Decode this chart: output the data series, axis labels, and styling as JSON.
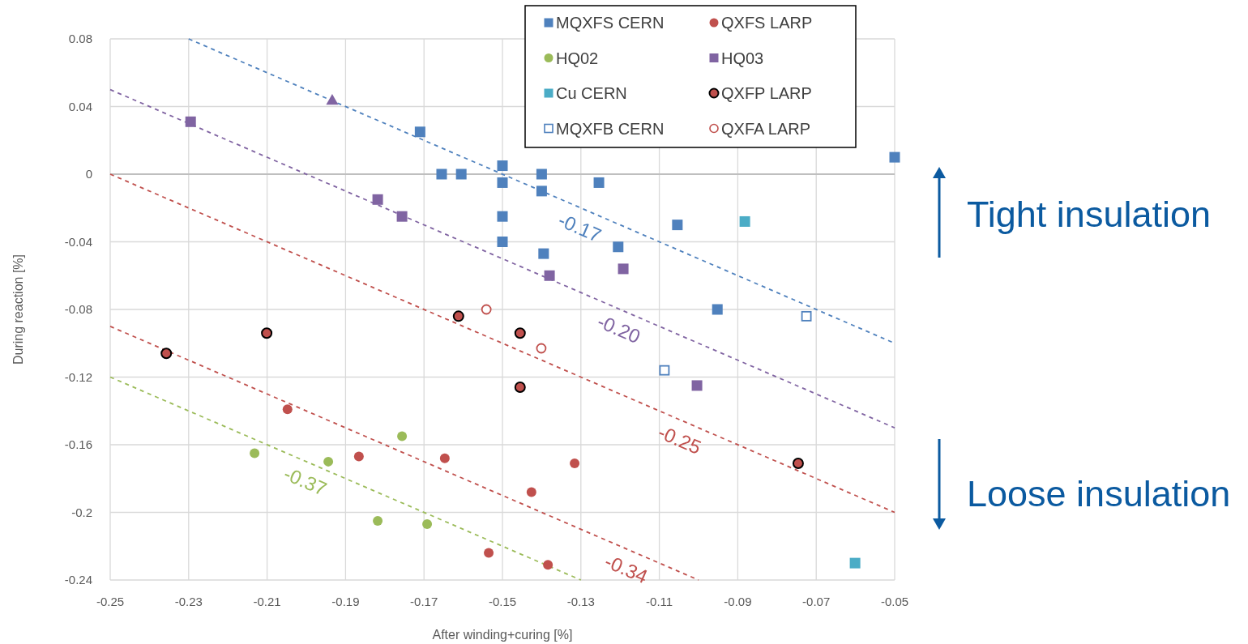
{
  "chart_data": {
    "type": "scatter",
    "xlabel": "After winding+curing [%]",
    "ylabel": "During reaction [%]",
    "xlim": [
      -0.25,
      -0.05
    ],
    "xticks": [
      -0.25,
      -0.23,
      -0.21,
      -0.19,
      -0.17,
      -0.15,
      -0.13,
      -0.11,
      -0.09,
      -0.07,
      -0.05
    ],
    "ylim": [
      -0.24,
      0.08
    ],
    "yticks": [
      -0.24,
      -0.2,
      -0.16,
      -0.12,
      -0.08,
      -0.04,
      0,
      0.04,
      0.08
    ],
    "grid": true,
    "legend": "top right",
    "series": [
      {
        "name": "MQXFS CERN",
        "color": "#4f81bd",
        "marker": "square",
        "x": [
          -0.171,
          -0.1655,
          -0.1605,
          -0.15,
          -0.15,
          -0.14,
          -0.14,
          -0.15,
          -0.15,
          -0.1395,
          -0.1254,
          -0.1205,
          -0.1054,
          -0.0952,
          -0.05
        ],
        "values": [
          0.025,
          0,
          0,
          0.005,
          -0.005,
          0,
          -0.01,
          -0.025,
          -0.04,
          -0.047,
          -0.005,
          -0.043,
          -0.03,
          -0.08,
          0.01
        ]
      },
      {
        "name": "QXFS LARP",
        "color": "#c0504d",
        "marker": "circle",
        "x": [
          -0.2048,
          -0.1866,
          -0.1647,
          -0.1316,
          -0.1426,
          -0.1535,
          -0.1384
        ],
        "values": [
          -0.139,
          -0.167,
          -0.168,
          -0.171,
          -0.188,
          -0.224,
          -0.231
        ]
      },
      {
        "name": "HQ02",
        "color": "#9bbb59",
        "marker": "circle",
        "x": [
          -0.2132,
          -0.1944,
          -0.1756,
          -0.1818,
          -0.1692
        ],
        "values": [
          -0.165,
          -0.17,
          -0.155,
          -0.205,
          -0.207
        ]
      },
      {
        "name": "HQ03",
        "color": "#8064a2",
        "marker": "square",
        "x": [
          -0.2295,
          -0.1818,
          -0.1756,
          -0.138,
          -0.1192,
          -0.1004
        ],
        "values": [
          0.031,
          -0.015,
          -0.025,
          -0.06,
          -0.056,
          -0.125
        ]
      },
      {
        "name": "Cu CERN",
        "color": "#4bacc6",
        "marker": "square",
        "x": [
          -0.0882,
          -0.0601
        ],
        "values": [
          -0.028,
          -0.23
        ]
      },
      {
        "name": "QXFP LARP",
        "color": "#c0504d",
        "marker": "circle",
        "x": [
          -0.2357,
          -0.2101,
          -0.1612,
          -0.1455,
          -0.1455,
          -0.0746
        ],
        "values": [
          -0.106,
          -0.094,
          -0.084,
          -0.094,
          -0.126,
          -0.171
        ]
      },
      {
        "name": "MQXFB CERN",
        "color": "#4f81bd",
        "marker": "square",
        "x": [
          -0.0725,
          -0.1087
        ],
        "values": [
          -0.084,
          -0.116
        ]
      },
      {
        "name": "QXFA LARP",
        "color": "#c0504d",
        "marker": "circle",
        "x": [
          -0.1541,
          -0.1401
        ],
        "values": [
          -0.08,
          -0.103
        ]
      },
      {
        "color": "#8064a2",
        "marker": "triangle",
        "x": [
          -0.1934
        ],
        "values": [
          0.044
        ]
      },
      {
        "type": "line",
        "name": "-0.17",
        "color": "#4f81bd",
        "line_style": "dashed",
        "marker": "none",
        "x": [
          -0.23,
          -0.05
        ],
        "values": [
          0.08,
          -0.1
        ]
      },
      {
        "type": "line",
        "name": "-0.20",
        "color": "#8064a2",
        "line_style": "dashed",
        "marker": "none",
        "x": [
          -0.25,
          -0.05
        ],
        "values": [
          0.05,
          -0.15
        ]
      },
      {
        "type": "line",
        "name": "-0.25",
        "color": "#c0504d",
        "line_style": "dashed",
        "marker": "none",
        "x": [
          -0.25,
          -0.05
        ],
        "values": [
          0,
          -0.2
        ]
      },
      {
        "type": "line",
        "name": "-0.34",
        "color": "#c0504d",
        "line_style": "dashed",
        "marker": "none",
        "x": [
          -0.25,
          -0.1
        ],
        "values": [
          -0.09,
          -0.24
        ]
      },
      {
        "type": "line",
        "name": "-0.37",
        "color": "#9bbb59",
        "line_style": "dashed",
        "marker": "none",
        "x": [
          -0.25,
          -0.13
        ],
        "values": [
          -0.12,
          -0.24
        ]
      }
    ],
    "annotations": [
      "Tight insulation",
      "Loose insulation"
    ]
  }
}
